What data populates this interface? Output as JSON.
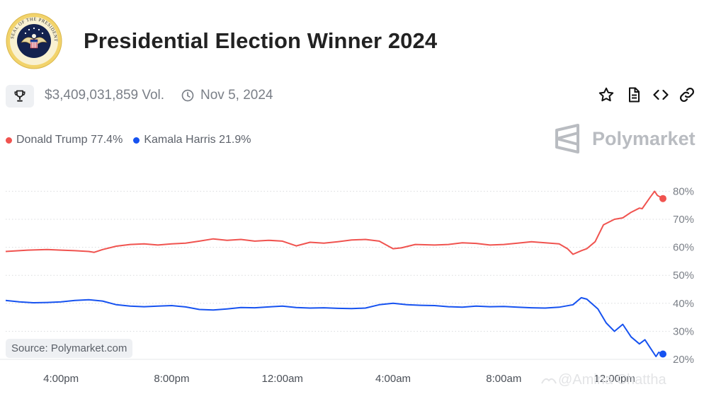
{
  "header": {
    "title": "Presidential Election Winner 2024",
    "seal_text": "SEAL OF THE PRESIDENT OF THE UNITED STATES",
    "volume": "$3,409,031,859 Vol.",
    "date": "Nov 5, 2024"
  },
  "legend": {
    "items": [
      {
        "label": "Donald Trump 77.4%",
        "color": "#f0534f"
      },
      {
        "label": "Kamala Harris 21.9%",
        "color": "#1652f0"
      }
    ]
  },
  "brand": {
    "name": "Polymarket"
  },
  "source": "Source: Polymarket.com",
  "watermark": "@Amina Chattha",
  "colors": {
    "trump": "#f0534f",
    "harris": "#1652f0",
    "grid": "#d9dbde",
    "axis_text": "#7a7f87"
  },
  "icons": [
    "trophy-icon",
    "clock-icon",
    "star-icon",
    "document-icon",
    "code-icon",
    "link-icon"
  ],
  "chart_data": {
    "type": "line",
    "x_unit": "hours since 2:00pm, Nov 5",
    "xticks": [
      {
        "x": 2,
        "label": "4:00pm"
      },
      {
        "x": 6,
        "label": "8:00pm"
      },
      {
        "x": 10,
        "label": "12:00am"
      },
      {
        "x": 14,
        "label": "4:00am"
      },
      {
        "x": 18,
        "label": "8:00am"
      },
      {
        "x": 22,
        "label": "12:00pm"
      }
    ],
    "yticks": [
      20,
      30,
      40,
      50,
      60,
      70,
      80
    ],
    "ytick_labels": [
      "20%",
      "30%",
      "40%",
      "50%",
      "60%",
      "70%",
      "80%"
    ],
    "ylim": [
      20,
      80
    ],
    "xlim": [
      0,
      23.75
    ],
    "grid": "dotted horizontal",
    "series": [
      {
        "name": "Donald Trump",
        "color": "#f0534f",
        "final": 77.4,
        "points": [
          [
            0,
            58.5
          ],
          [
            0.8,
            59
          ],
          [
            1.5,
            59.2
          ],
          [
            2,
            59
          ],
          [
            2.5,
            58.8
          ],
          [
            3,
            58.5
          ],
          [
            3.2,
            58.2
          ],
          [
            3.5,
            59.2
          ],
          [
            4,
            60.4
          ],
          [
            4.5,
            61
          ],
          [
            5,
            61.2
          ],
          [
            5.5,
            60.8
          ],
          [
            6,
            61.2
          ],
          [
            6.5,
            61.5
          ],
          [
            7,
            62.2
          ],
          [
            7.5,
            63
          ],
          [
            8,
            62.5
          ],
          [
            8.5,
            62.8
          ],
          [
            9,
            62.2
          ],
          [
            9.5,
            62.5
          ],
          [
            10,
            62.2
          ],
          [
            10.5,
            60.5
          ],
          [
            11,
            61.8
          ],
          [
            11.5,
            61.5
          ],
          [
            12,
            62
          ],
          [
            12.5,
            62.6
          ],
          [
            13,
            62.8
          ],
          [
            13.5,
            62.2
          ],
          [
            14,
            59.5
          ],
          [
            14.3,
            59.8
          ],
          [
            14.8,
            61
          ],
          [
            15.5,
            60.8
          ],
          [
            16,
            61
          ],
          [
            16.5,
            61.6
          ],
          [
            17,
            61.4
          ],
          [
            17.5,
            60.8
          ],
          [
            18,
            61
          ],
          [
            18.5,
            61.5
          ],
          [
            19,
            62
          ],
          [
            19.5,
            61.6
          ],
          [
            20,
            61.2
          ],
          [
            20.3,
            59.5
          ],
          [
            20.5,
            57.5
          ],
          [
            20.8,
            58.8
          ],
          [
            21,
            59.5
          ],
          [
            21.3,
            62
          ],
          [
            21.6,
            68
          ],
          [
            22,
            70
          ],
          [
            22.3,
            70.5
          ],
          [
            22.6,
            72.5
          ],
          [
            22.9,
            74
          ],
          [
            23,
            73.8
          ],
          [
            23.3,
            78
          ],
          [
            23.45,
            80
          ],
          [
            23.55,
            78.5
          ],
          [
            23.75,
            77.4
          ]
        ]
      },
      {
        "name": "Kamala Harris",
        "color": "#1652f0",
        "final": 21.9,
        "points": [
          [
            0,
            41
          ],
          [
            0.5,
            40.5
          ],
          [
            1,
            40.2
          ],
          [
            1.5,
            40.3
          ],
          [
            2,
            40.5
          ],
          [
            2.5,
            41
          ],
          [
            3,
            41.3
          ],
          [
            3.5,
            40.8
          ],
          [
            4,
            39.5
          ],
          [
            4.5,
            39
          ],
          [
            5,
            38.8
          ],
          [
            5.5,
            39
          ],
          [
            6,
            39.2
          ],
          [
            6.5,
            38.7
          ],
          [
            7,
            37.8
          ],
          [
            7.5,
            37.6
          ],
          [
            8,
            38
          ],
          [
            8.5,
            38.5
          ],
          [
            9,
            38.4
          ],
          [
            9.5,
            38.7
          ],
          [
            10,
            39
          ],
          [
            10.5,
            38.5
          ],
          [
            11,
            38.3
          ],
          [
            11.5,
            38.4
          ],
          [
            12,
            38.2
          ],
          [
            12.5,
            38.1
          ],
          [
            13,
            38.3
          ],
          [
            13.5,
            39.5
          ],
          [
            14,
            40
          ],
          [
            14.5,
            39.5
          ],
          [
            15,
            39.3
          ],
          [
            15.5,
            39.2
          ],
          [
            16,
            38.8
          ],
          [
            16.5,
            38.6
          ],
          [
            17,
            39
          ],
          [
            17.5,
            38.8
          ],
          [
            18,
            38.9
          ],
          [
            18.5,
            38.6
          ],
          [
            19,
            38.4
          ],
          [
            19.5,
            38.3
          ],
          [
            20,
            38.6
          ],
          [
            20.5,
            39.5
          ],
          [
            20.8,
            42
          ],
          [
            21,
            41.5
          ],
          [
            21.4,
            38
          ],
          [
            21.7,
            33
          ],
          [
            22,
            30
          ],
          [
            22.3,
            32.5
          ],
          [
            22.6,
            28
          ],
          [
            22.9,
            25.5
          ],
          [
            23.1,
            27
          ],
          [
            23.3,
            24
          ],
          [
            23.5,
            21
          ],
          [
            23.6,
            22.5
          ],
          [
            23.75,
            21.9
          ]
        ]
      }
    ]
  }
}
